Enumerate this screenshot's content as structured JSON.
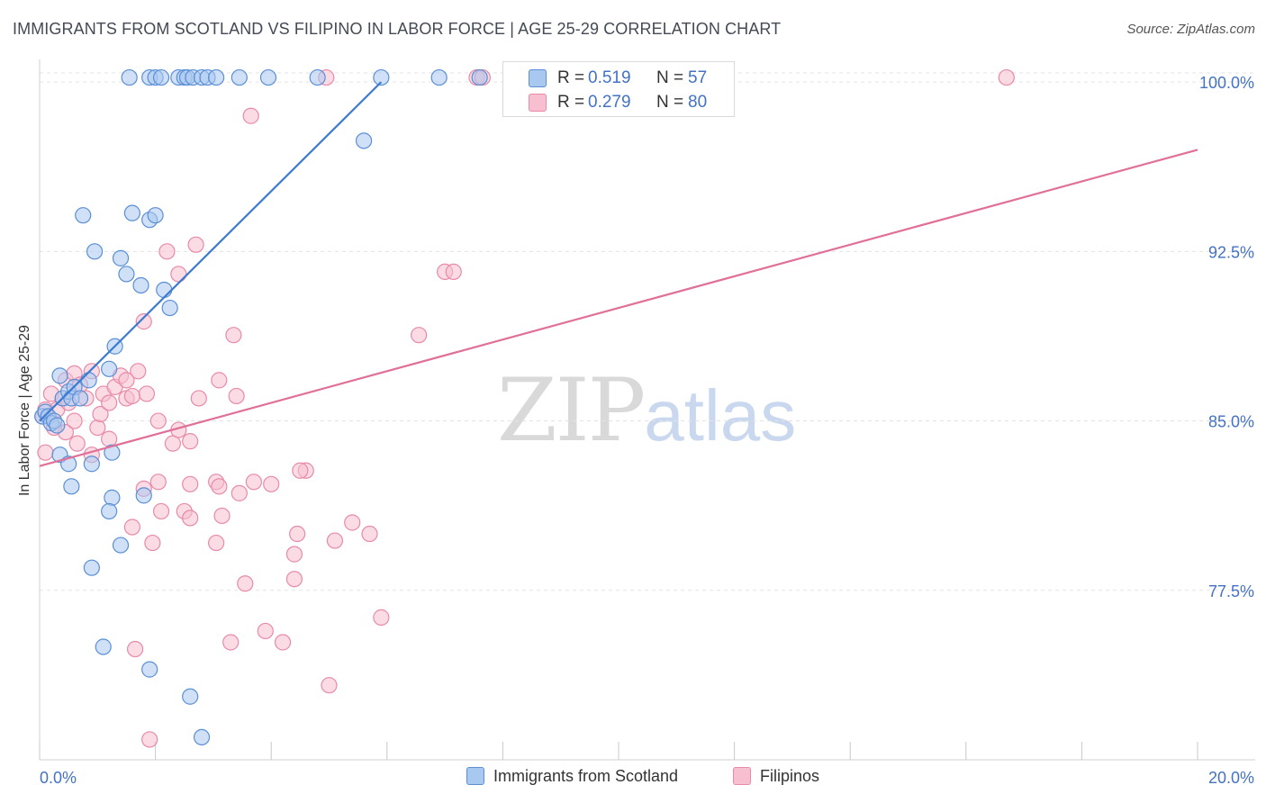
{
  "chart_data": {
    "type": "scatter",
    "title": "IMMIGRANTS FROM SCOTLAND VS FILIPINO IN LABOR FORCE | AGE 25-29 CORRELATION CHART",
    "source": "Source: ZipAtlas.com",
    "xlabel": "",
    "ylabel": "In Labor Force | Age 25-29",
    "xlim": [
      0,
      20
    ],
    "ylim": [
      70.0,
      101.0
    ],
    "x_tick_labels": [
      {
        "value": 0,
        "label": "0.0%"
      },
      {
        "value": 20,
        "label": "20.0%"
      }
    ],
    "y_tick_labels": [
      {
        "value": 100.0,
        "label": "100.0%"
      },
      {
        "value": 92.5,
        "label": "92.5%"
      },
      {
        "value": 85.0,
        "label": "85.0%"
      },
      {
        "value": 77.5,
        "label": "77.5%"
      }
    ],
    "grid": true,
    "legend_position": "bottom-center",
    "watermark": {
      "zip": "ZIP",
      "atlas": "atlas"
    },
    "colors": {
      "scotland_fill": "#a9c8f0",
      "scotland_stroke": "#5a8fd6",
      "scotland_line": "#3d7bd0",
      "filipino_fill": "#f7bfd0",
      "filipino_stroke": "#e88aa8",
      "filipino_line": "#e07098",
      "value_text": "#4472c4"
    },
    "stats": [
      {
        "series": "Immigrants from Scotland",
        "r_label": "R =",
        "r": "0.519",
        "n_label": "N =",
        "n": "57"
      },
      {
        "series": "Filipinos",
        "r_label": "R =",
        "r": "0.279",
        "n_label": "N =",
        "n": "80"
      }
    ],
    "series": [
      {
        "name": "Immigrants from Scotland",
        "trend": {
          "x": [
            0.0,
            5.9
          ],
          "y": [
            85.0,
            100.0
          ]
        },
        "points": [
          [
            0.05,
            85.2
          ],
          [
            0.1,
            85.4
          ],
          [
            0.15,
            85.2
          ],
          [
            0.2,
            84.9
          ],
          [
            0.25,
            85.0
          ],
          [
            0.3,
            84.8
          ],
          [
            0.35,
            87.0
          ],
          [
            0.4,
            86.0
          ],
          [
            0.5,
            86.3
          ],
          [
            0.55,
            86.0
          ],
          [
            0.6,
            86.5
          ],
          [
            0.7,
            86.0
          ],
          [
            0.85,
            86.8
          ],
          [
            1.2,
            87.3
          ],
          [
            1.3,
            88.3
          ],
          [
            0.35,
            83.5
          ],
          [
            0.5,
            83.1
          ],
          [
            0.55,
            82.1
          ],
          [
            0.9,
            83.1
          ],
          [
            1.25,
            83.6
          ],
          [
            1.25,
            81.6
          ],
          [
            1.2,
            81.0
          ],
          [
            1.8,
            81.7
          ],
          [
            1.4,
            79.5
          ],
          [
            0.9,
            78.5
          ],
          [
            1.1,
            75.0
          ],
          [
            1.9,
            74.0
          ],
          [
            2.6,
            72.8
          ],
          [
            2.8,
            71.0
          ],
          [
            0.75,
            94.1
          ],
          [
            0.95,
            92.5
          ],
          [
            1.4,
            92.2
          ],
          [
            1.5,
            91.5
          ],
          [
            1.6,
            94.2
          ],
          [
            1.75,
            91.0
          ],
          [
            1.9,
            93.9
          ],
          [
            2.0,
            94.1
          ],
          [
            2.15,
            90.8
          ],
          [
            2.25,
            90.0
          ],
          [
            1.55,
            100.2
          ],
          [
            1.9,
            100.2
          ],
          [
            2.0,
            100.2
          ],
          [
            2.1,
            100.2
          ],
          [
            2.4,
            100.2
          ],
          [
            2.5,
            100.2
          ],
          [
            2.55,
            100.2
          ],
          [
            2.65,
            100.2
          ],
          [
            2.8,
            100.2
          ],
          [
            2.9,
            100.2
          ],
          [
            3.05,
            100.2
          ],
          [
            3.45,
            100.2
          ],
          [
            3.95,
            100.2
          ],
          [
            4.8,
            100.2
          ],
          [
            5.9,
            100.2
          ],
          [
            6.9,
            100.2
          ],
          [
            7.6,
            100.2
          ],
          [
            5.6,
            97.4
          ]
        ]
      },
      {
        "name": "Filipinos",
        "trend": {
          "x": [
            0.0,
            20.0
          ],
          "y": [
            83.0,
            97.0
          ]
        },
        "points": [
          [
            0.05,
            85.2
          ],
          [
            0.1,
            85.5
          ],
          [
            0.2,
            86.2
          ],
          [
            0.3,
            85.5
          ],
          [
            0.4,
            86.0
          ],
          [
            0.45,
            86.8
          ],
          [
            0.5,
            85.8
          ],
          [
            0.6,
            87.1
          ],
          [
            0.7,
            86.6
          ],
          [
            0.8,
            86.0
          ],
          [
            0.9,
            87.2
          ],
          [
            1.0,
            84.7
          ],
          [
            1.05,
            85.3
          ],
          [
            1.1,
            86.2
          ],
          [
            1.2,
            85.8
          ],
          [
            1.3,
            86.5
          ],
          [
            1.4,
            87.0
          ],
          [
            1.5,
            86.0
          ],
          [
            1.6,
            86.1
          ],
          [
            1.7,
            87.2
          ],
          [
            0.65,
            84.0
          ],
          [
            0.9,
            83.5
          ],
          [
            1.2,
            84.2
          ],
          [
            1.5,
            86.8
          ],
          [
            1.85,
            86.2
          ],
          [
            2.05,
            85.0
          ],
          [
            2.3,
            84.0
          ],
          [
            2.4,
            84.6
          ],
          [
            2.6,
            84.1
          ],
          [
            2.75,
            86.0
          ],
          [
            0.45,
            84.5
          ],
          [
            1.8,
            89.4
          ],
          [
            2.2,
            92.5
          ],
          [
            2.4,
            91.5
          ],
          [
            2.7,
            92.8
          ],
          [
            3.35,
            88.8
          ],
          [
            4.6,
            82.8
          ],
          [
            3.4,
            86.1
          ],
          [
            3.1,
            86.8
          ],
          [
            1.8,
            82.0
          ],
          [
            2.05,
            82.3
          ],
          [
            2.6,
            82.2
          ],
          [
            3.05,
            82.3
          ],
          [
            3.1,
            82.1
          ],
          [
            3.45,
            81.8
          ],
          [
            3.7,
            82.3
          ],
          [
            4.0,
            82.2
          ],
          [
            4.5,
            82.8
          ],
          [
            2.1,
            81.0
          ],
          [
            2.5,
            81.0
          ],
          [
            2.6,
            80.7
          ],
          [
            3.15,
            80.8
          ],
          [
            1.6,
            80.3
          ],
          [
            1.95,
            79.6
          ],
          [
            3.05,
            79.6
          ],
          [
            4.4,
            79.1
          ],
          [
            4.45,
            80.0
          ],
          [
            5.1,
            79.7
          ],
          [
            5.4,
            80.5
          ],
          [
            5.7,
            80.0
          ],
          [
            4.4,
            78.0
          ],
          [
            3.55,
            77.8
          ],
          [
            3.9,
            75.7
          ],
          [
            4.2,
            75.2
          ],
          [
            3.3,
            75.2
          ],
          [
            1.65,
            74.9
          ],
          [
            5.9,
            76.3
          ],
          [
            5.0,
            73.3
          ],
          [
            1.9,
            70.9
          ],
          [
            4.95,
            100.2
          ],
          [
            7.55,
            100.2
          ],
          [
            7.65,
            100.2
          ],
          [
            16.7,
            100.2
          ],
          [
            3.65,
            98.5
          ],
          [
            7.0,
            91.6
          ],
          [
            7.15,
            91.6
          ],
          [
            6.55,
            88.8
          ],
          [
            0.1,
            83.6
          ],
          [
            0.25,
            84.7
          ],
          [
            0.6,
            85.0
          ]
        ]
      }
    ]
  }
}
